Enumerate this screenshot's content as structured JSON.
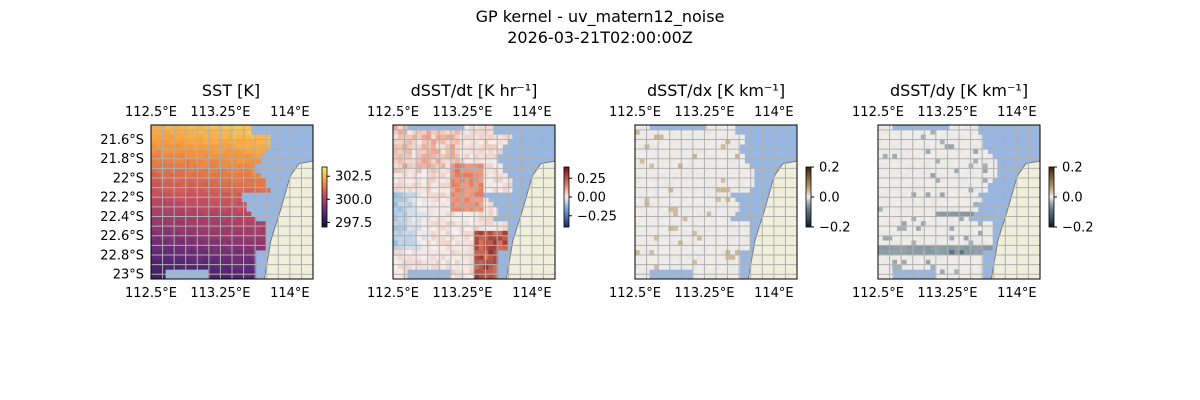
{
  "figure": {
    "title": "GP kernel - uv_matern12_noise",
    "subtitle": "2026-03-21T02:00:00Z"
  },
  "colors": {
    "ocean": "#97b6e2",
    "land": "#efefdb",
    "coast": "#7a7a7a",
    "grid": "#b0b0b0"
  },
  "chart_data": [
    {
      "type": "heatmap",
      "title": "SST [K]",
      "lon_ticks": [
        "112.5°E",
        "113.25°E",
        "114°E"
      ],
      "lat_ticks": [
        "21.6°S",
        "21.8°S",
        "22°S",
        "22.2°S",
        "22.4°S",
        "22.6°S",
        "22.8°S",
        "23°S"
      ],
      "lon_range": [
        112.5,
        114.25
      ],
      "lat_range": [
        -23.05,
        -21.45
      ],
      "colormap": "thermal",
      "clim": [
        297.0,
        303.5
      ],
      "colorbar_ticks": [
        "302.5",
        "300.0",
        "297.5"
      ],
      "colorbar_tick_values": [
        302.5,
        300.0,
        297.5
      ],
      "value_range": [
        297.5,
        302.8
      ]
    },
    {
      "type": "heatmap",
      "title": "dSST/dt [K hr⁻¹]",
      "lon_ticks": [
        "112.5°E",
        "113.25°E",
        "114°E"
      ],
      "lat_ticks": [],
      "lon_range": [
        112.5,
        114.25
      ],
      "lat_range": [
        -23.05,
        -21.45
      ],
      "colormap": "balance",
      "clim": [
        -0.4,
        0.4
      ],
      "colorbar_ticks": [
        "0.25",
        "0.00",
        "−0.25"
      ],
      "colorbar_tick_values": [
        0.25,
        0.0,
        -0.25
      ],
      "value_range": [
        -0.2,
        0.4
      ]
    },
    {
      "type": "heatmap",
      "title": "dSST/dx [K km⁻¹]",
      "lon_ticks": [
        "112.5°E",
        "113.25°E",
        "114°E"
      ],
      "lat_ticks": [],
      "lon_range": [
        112.5,
        114.25
      ],
      "lat_range": [
        -23.05,
        -21.45
      ],
      "colormap": "diff",
      "clim": [
        -0.2,
        0.2
      ],
      "colorbar_ticks": [
        "0.2",
        "0.0",
        "−0.2"
      ],
      "colorbar_tick_values": [
        0.2,
        0.0,
        -0.2
      ],
      "value_range": [
        -0.05,
        0.05
      ]
    },
    {
      "type": "heatmap",
      "title": "dSST/dy [K km⁻¹]",
      "lon_ticks": [
        "112.5°E",
        "113.25°E",
        "114°E"
      ],
      "lat_ticks": [],
      "lon_range": [
        112.5,
        114.25
      ],
      "lat_range": [
        -23.05,
        -21.45
      ],
      "colormap": "diff",
      "clim": [
        -0.2,
        0.2
      ],
      "colorbar_ticks": [
        "0.2",
        "0.0",
        "−0.2"
      ],
      "colorbar_tick_values": [
        0.2,
        0.0,
        -0.2
      ],
      "value_range": [
        -0.05,
        0.05
      ]
    }
  ]
}
